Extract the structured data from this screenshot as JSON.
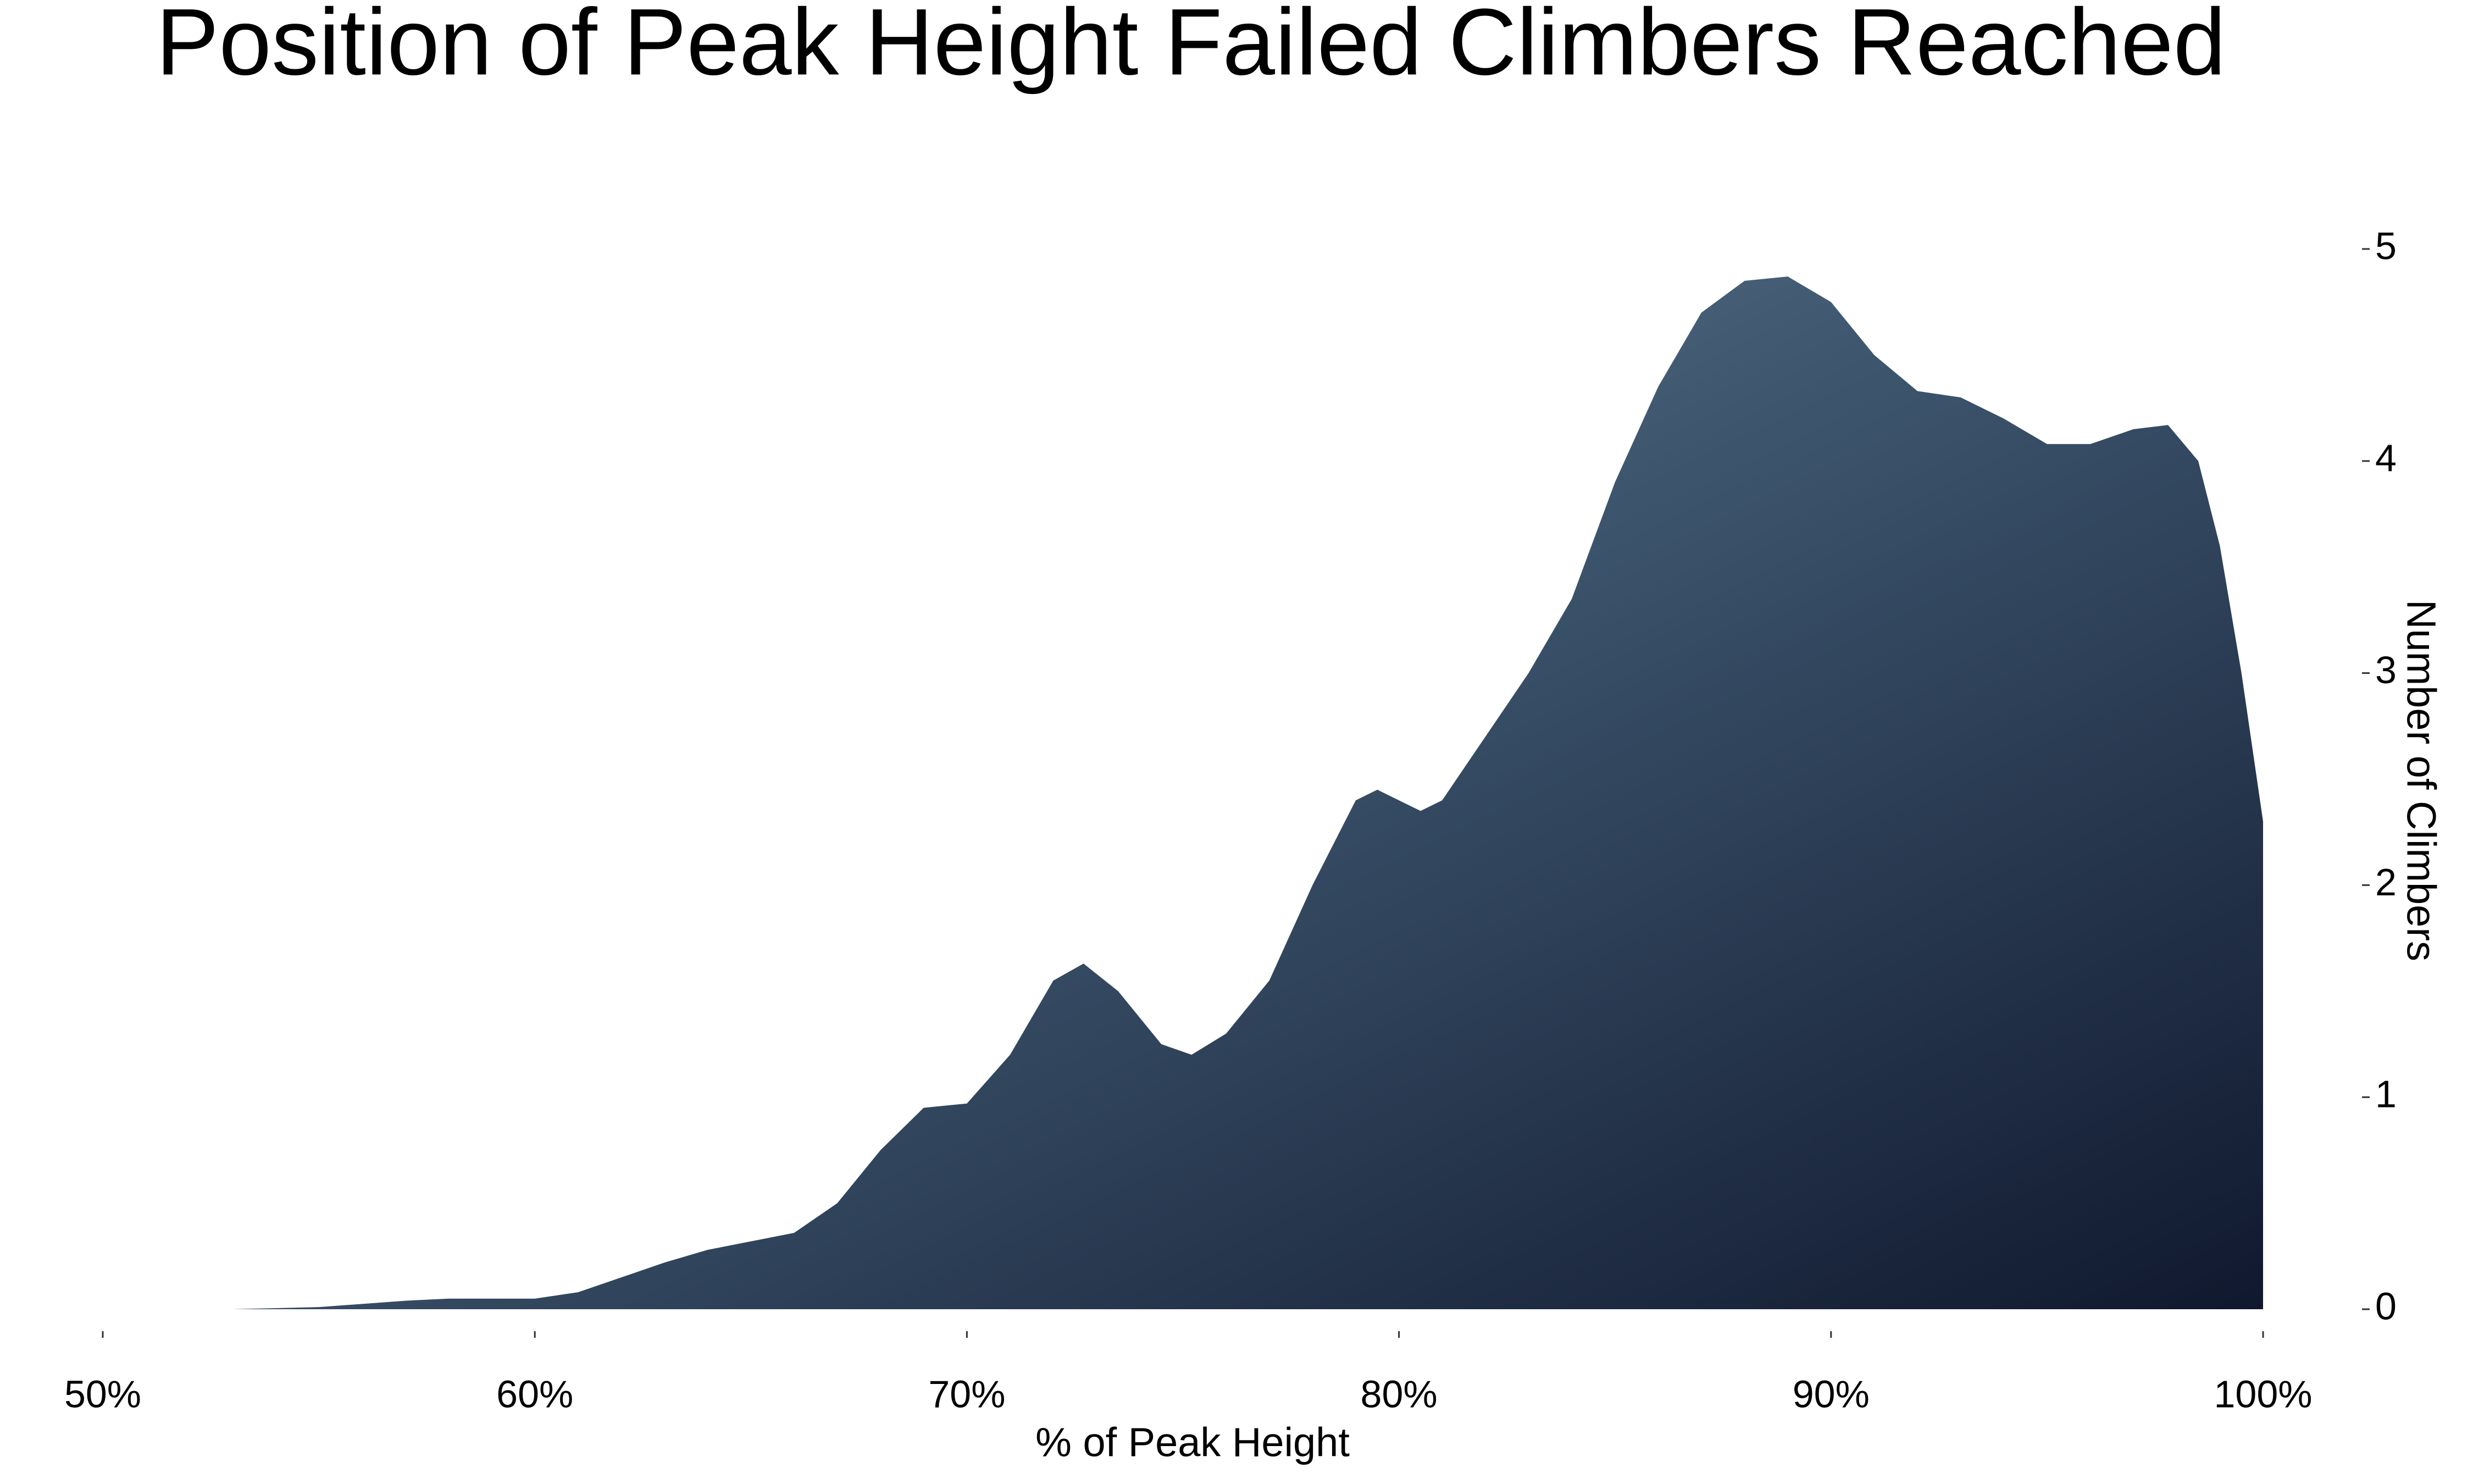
{
  "chart_data": {
    "type": "area",
    "title": "Position of Peak Height Failed Climbers Reached",
    "x_label": "% of Peak Height",
    "y_label": "Number of Climbers",
    "x": [
      50.5,
      53,
      55,
      57,
      58,
      60,
      61,
      62,
      63,
      64,
      65,
      66,
      67,
      68,
      69,
      70,
      71,
      72,
      72.7,
      73.5,
      74.5,
      75.2,
      76,
      77,
      78,
      79,
      79.5,
      80.5,
      81,
      82,
      83,
      84,
      85,
      86,
      87,
      88,
      89,
      90,
      91,
      92,
      93,
      94,
      95,
      96,
      97,
      97.8,
      98.5,
      99,
      99.5,
      100
    ],
    "values": [
      0,
      0,
      0.01,
      0.04,
      0.05,
      0.05,
      0.08,
      0.15,
      0.22,
      0.28,
      0.32,
      0.36,
      0.5,
      0.75,
      0.95,
      0.97,
      1.2,
      1.55,
      1.63,
      1.5,
      1.25,
      1.2,
      1.3,
      1.55,
      2.0,
      2.4,
      2.45,
      2.35,
      2.4,
      2.7,
      3.0,
      3.35,
      3.9,
      4.35,
      4.7,
      4.85,
      4.87,
      4.75,
      4.5,
      4.33,
      4.3,
      4.2,
      4.08,
      4.08,
      4.15,
      4.17,
      4.0,
      3.6,
      3.0,
      2.3
    ],
    "color": "#3d566e",
    "xlim": [
      50,
      100
    ],
    "xticks": [
      {
        "value": 50,
        "label": "50%"
      },
      {
        "value": 60,
        "label": "60%"
      },
      {
        "value": 70,
        "label": "70%"
      },
      {
        "value": 80,
        "label": "80%"
      },
      {
        "value": 90,
        "label": "90%"
      },
      {
        "value": 100,
        "label": "100%"
      }
    ],
    "ylim": [
      0,
      5
    ],
    "yticks": [
      0,
      1,
      2,
      3,
      4,
      5
    ],
    "y_axis_side": "right",
    "grid": false
  }
}
